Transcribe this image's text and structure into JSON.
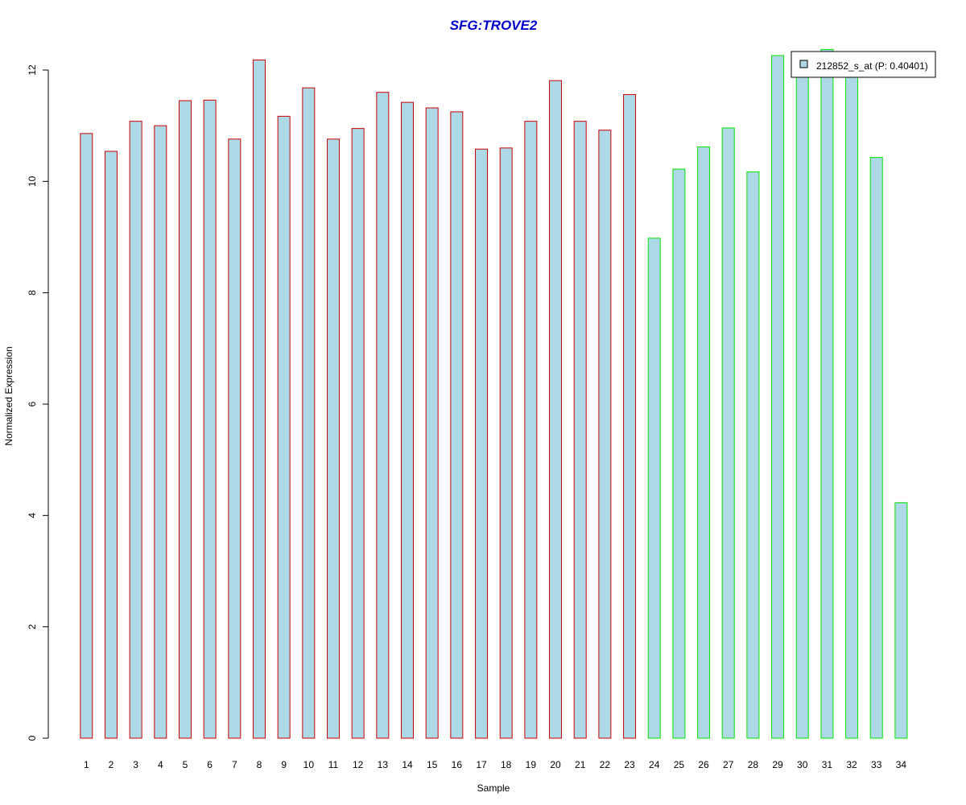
{
  "chart_data": {
    "type": "bar",
    "title": "SFG:TROVE2",
    "xlabel": "Sample",
    "ylabel": "Normalized Expression",
    "categories": [
      "1",
      "2",
      "3",
      "4",
      "5",
      "6",
      "7",
      "8",
      "9",
      "10",
      "11",
      "12",
      "13",
      "14",
      "15",
      "16",
      "17",
      "18",
      "19",
      "20",
      "21",
      "22",
      "23",
      "24",
      "25",
      "26",
      "27",
      "28",
      "29",
      "30",
      "31",
      "32",
      "33",
      "34"
    ],
    "series": [
      {
        "name": "212852_s_at (P: 0.40401)",
        "values": [
          10.86,
          10.54,
          11.08,
          11.0,
          11.45,
          11.46,
          10.76,
          12.18,
          11.17,
          11.68,
          10.76,
          10.95,
          11.6,
          11.42,
          11.32,
          11.25,
          10.58,
          10.6,
          11.08,
          11.81,
          11.08,
          10.92,
          11.56,
          8.98,
          10.22,
          10.62,
          10.96,
          10.17,
          12.26,
          12.33,
          12.37,
          12.0,
          10.43,
          4.23
        ]
      }
    ],
    "groups": [
      {
        "samples": "1-23",
        "outline_color": "#cc0000"
      },
      {
        "samples": "24-34",
        "outline_color": "#00e600"
      }
    ],
    "ylim": [
      0,
      12.5
    ],
    "yticks": [
      0,
      2,
      4,
      6,
      8,
      10,
      12
    ],
    "grid": false,
    "legend_position": "top-right",
    "colors": {
      "bar_fill": "#add8e6",
      "group1_outline": "#cc0000",
      "group2_outline": "#00e600",
      "title": "#0000cc"
    }
  }
}
